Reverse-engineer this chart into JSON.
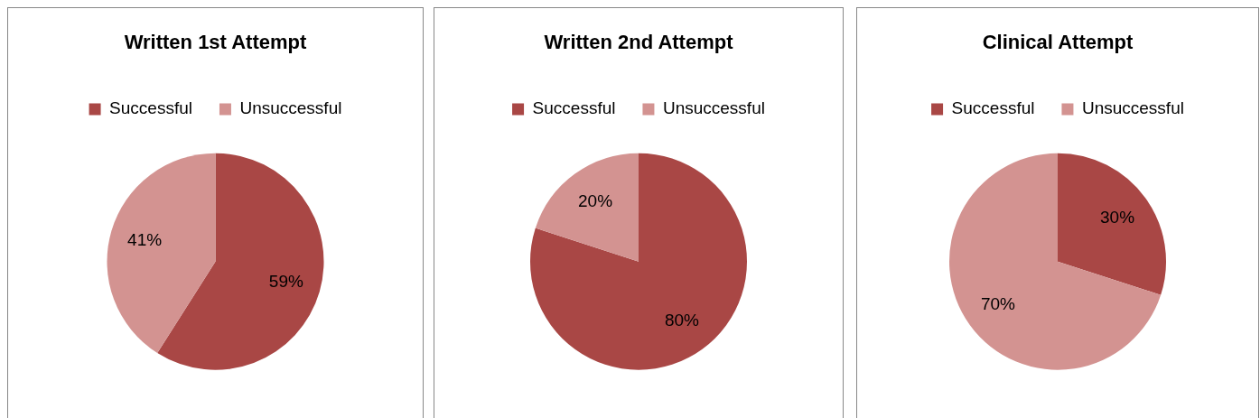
{
  "chart_data": [
    {
      "type": "pie",
      "title": "Written 1st Attempt",
      "categories": [
        "Successful",
        "Unsuccessful"
      ],
      "values": [
        59,
        41
      ],
      "colors": [
        "#a94745",
        "#d39391"
      ],
      "value_labels": [
        "59%",
        "41%"
      ],
      "legend": "top"
    },
    {
      "type": "pie",
      "title": "Written 2nd Attempt",
      "categories": [
        "Successful",
        "Unsuccessful"
      ],
      "values": [
        80,
        20
      ],
      "colors": [
        "#a94745",
        "#d39391"
      ],
      "value_labels": [
        "80%",
        "20%"
      ],
      "legend": "top"
    },
    {
      "type": "pie",
      "title": "Clinical Attempt",
      "categories": [
        "Successful",
        "Unsuccessful"
      ],
      "values": [
        30,
        70
      ],
      "colors": [
        "#a94745",
        "#d39391"
      ],
      "value_labels": [
        "30%",
        "70%"
      ],
      "legend": "top"
    }
  ]
}
